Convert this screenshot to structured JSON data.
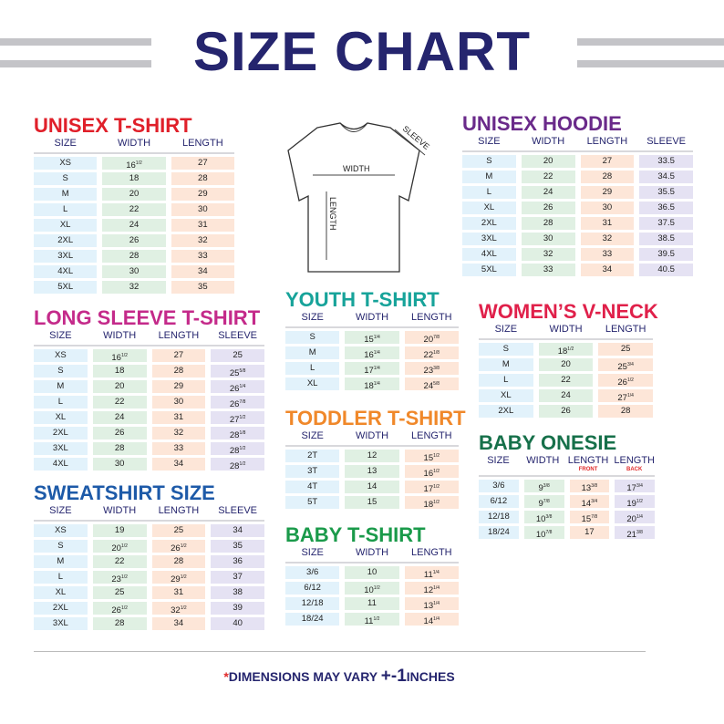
{
  "title": "SIZE CHART",
  "footer": {
    "star": "*",
    "text1": "DIMENSIONS MAY VARY ",
    "pm": "+-1",
    "text2": "INCHES"
  },
  "diagram": {
    "width_label": "WIDTH",
    "length_label": "LENGTH",
    "sleeve_label": "SLEEVE"
  },
  "colors": {
    "title": "#25256e",
    "size": "#e2f2fb",
    "width": "#e0f0e3",
    "length": "#fde6d8",
    "sleeve": "#e5e2f3"
  },
  "sections": [
    {
      "id": "unisex",
      "title": "UNISEX T-SHIRT",
      "color": "#e0202a",
      "headers": [
        "SIZE",
        "WIDTH",
        "LENGTH"
      ],
      "rows": [
        [
          "XS",
          "16 1/2",
          "27"
        ],
        [
          "S",
          "18",
          "28"
        ],
        [
          "M",
          "20",
          "29"
        ],
        [
          "L",
          "22",
          "30"
        ],
        [
          "XL",
          "24",
          "31"
        ],
        [
          "2XL",
          "26",
          "32"
        ],
        [
          "3XL",
          "28",
          "33"
        ],
        [
          "4XL",
          "30",
          "34"
        ],
        [
          "5XL",
          "32",
          "35"
        ]
      ]
    },
    {
      "id": "longsleeve",
      "title": "LONG SLEEVE T-SHIRT",
      "color": "#c42a8a",
      "headers": [
        "SIZE",
        "WIDTH",
        "LENGTH",
        "SLEEVE"
      ],
      "rows": [
        [
          "XS",
          "16 1/2",
          "27",
          "25"
        ],
        [
          "S",
          "18",
          "28",
          "25 5/8"
        ],
        [
          "M",
          "20",
          "29",
          "26 1/4"
        ],
        [
          "L",
          "22",
          "30",
          "26 7/8"
        ],
        [
          "XL",
          "24",
          "31",
          "27 1/2"
        ],
        [
          "2XL",
          "26",
          "32",
          "28 1/8"
        ],
        [
          "3XL",
          "28",
          "33",
          "28 1/2"
        ],
        [
          "4XL",
          "30",
          "34",
          "28 1/2"
        ]
      ]
    },
    {
      "id": "sweatshirt",
      "title": "SWEATSHIRT SIZE",
      "color": "#1d5aa8",
      "headers": [
        "SIZE",
        "WIDTH",
        "LENGTH",
        "SLEEVE"
      ],
      "rows": [
        [
          "XS",
          "19",
          "25",
          "34"
        ],
        [
          "S",
          "20 1/2",
          "26 1/2",
          "35"
        ],
        [
          "M",
          "22",
          "28",
          "36"
        ],
        [
          "L",
          "23 1/2",
          "29 1/2",
          "37"
        ],
        [
          "XL",
          "25",
          "31",
          "38"
        ],
        [
          "2XL",
          "26 1/2",
          "32 1/2",
          "39"
        ],
        [
          "3XL",
          "28",
          "34",
          "40"
        ]
      ]
    },
    {
      "id": "youth",
      "title": "YOUTH T-SHIRT",
      "color": "#17a39a",
      "headers": [
        "SIZE",
        "WIDTH",
        "LENGTH"
      ],
      "rows": [
        [
          "S",
          "15 1/4",
          "20 7/8"
        ],
        [
          "M",
          "16 1/4",
          "22 1/8"
        ],
        [
          "L",
          "17 1/4",
          "23 3/8"
        ],
        [
          "XL",
          "18 1/4",
          "24 5/8"
        ]
      ]
    },
    {
      "id": "toddler",
      "title": "TODDLER T-SHIRT",
      "color": "#f0882a",
      "headers": [
        "SIZE",
        "WIDTH",
        "LENGTH"
      ],
      "rows": [
        [
          "2T",
          "12",
          "15 1/2"
        ],
        [
          "3T",
          "13",
          "16 1/2"
        ],
        [
          "4T",
          "14",
          "17 1/2"
        ],
        [
          "5T",
          "15",
          "18 1/2"
        ]
      ]
    },
    {
      "id": "babytee",
      "title": "BABY T-SHIRT",
      "color": "#1a9a4a",
      "headers": [
        "SIZE",
        "WIDTH",
        "LENGTH"
      ],
      "rows": [
        [
          "3/6",
          "10",
          "11 1/4"
        ],
        [
          "6/12",
          "10 1/2",
          "12 1/4"
        ],
        [
          "12/18",
          "11",
          "13 1/4"
        ],
        [
          "18/24",
          "11 1/2",
          "14 1/4"
        ]
      ]
    },
    {
      "id": "hoodie",
      "title": "UNISEX HOODIE",
      "color": "#6a2a8a",
      "headers": [
        "SIZE",
        "WIDTH",
        "LENGTH",
        "SLEEVE"
      ],
      "rows": [
        [
          "S",
          "20",
          "27",
          "33.5"
        ],
        [
          "M",
          "22",
          "28",
          "34.5"
        ],
        [
          "L",
          "24",
          "29",
          "35.5"
        ],
        [
          "XL",
          "26",
          "30",
          "36.5"
        ],
        [
          "2XL",
          "28",
          "31",
          "37.5"
        ],
        [
          "3XL",
          "30",
          "32",
          "38.5"
        ],
        [
          "4XL",
          "32",
          "33",
          "39.5"
        ],
        [
          "5XL",
          "33",
          "34",
          "40.5"
        ]
      ]
    },
    {
      "id": "womens",
      "title": "WOMEN’S V-NECK",
      "color": "#e0204a",
      "headers": [
        "SIZE",
        "WIDTH",
        "LENGTH"
      ],
      "rows": [
        [
          "S",
          "18 1/2",
          "25"
        ],
        [
          "M",
          "20",
          "25 3/4"
        ],
        [
          "L",
          "22",
          "26 1/2"
        ],
        [
          "XL",
          "24",
          "27 1/4"
        ],
        [
          "2XL",
          "26",
          "28"
        ]
      ]
    },
    {
      "id": "onesie",
      "title": "BABY ONESIE",
      "color": "#16704a",
      "headers": [
        "SIZE",
        "WIDTH",
        "LENGTH",
        "LENGTH"
      ],
      "subheaders": [
        "",
        "",
        "FRONT",
        "BACK"
      ],
      "rows": [
        [
          "3/6",
          "9 3/8",
          "13 3/8",
          "17 3/4"
        ],
        [
          "6/12",
          "9 7/8",
          "14 3/4",
          "19 1/2"
        ],
        [
          "12/18",
          "10 3/8",
          "15 7/8",
          "20 1/4"
        ],
        [
          "18/24",
          "10 7/8",
          "17",
          "21 3/8"
        ]
      ]
    }
  ]
}
